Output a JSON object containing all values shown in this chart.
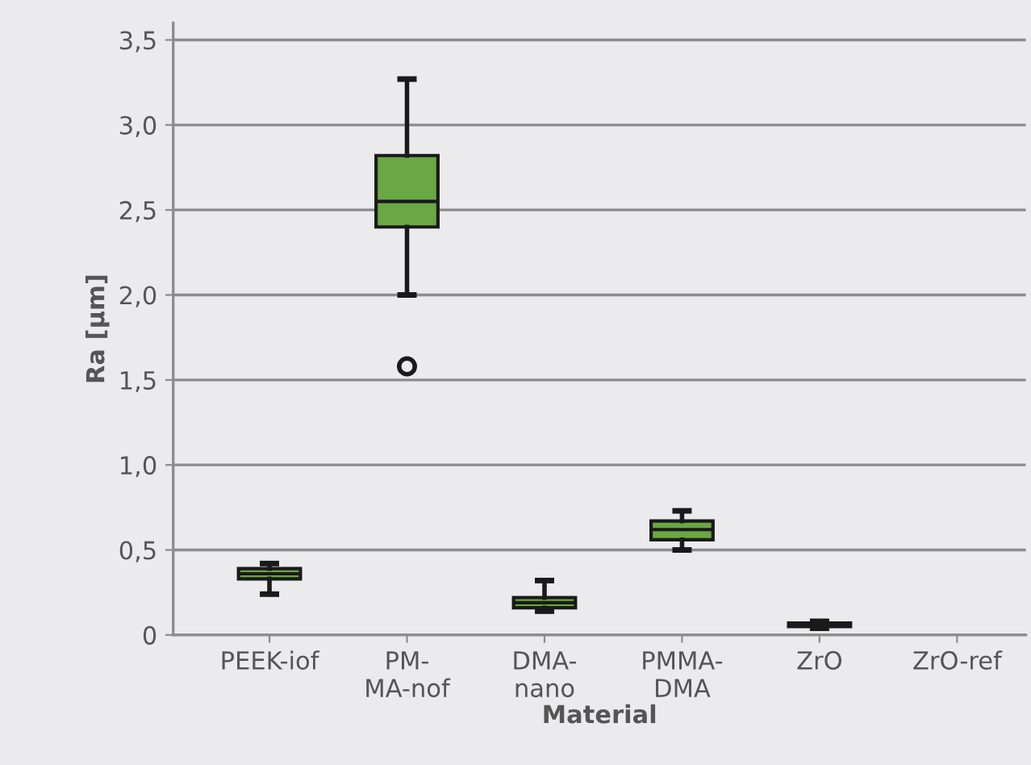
{
  "chart_data": {
    "type": "box",
    "xlabel": "Material",
    "ylabel": "Ra [µm]",
    "categories": [
      "PEEK-iof",
      "PM-\nMA-nof",
      "DMA-\nnano",
      "PMMA-\nDMA",
      "ZrO",
      "ZrO-ref"
    ],
    "color": "#6aa843",
    "boxes": [
      {
        "low": 0.24,
        "q1": 0.33,
        "median": 0.36,
        "q3": 0.39,
        "high": 0.42
      },
      {
        "low": 2.0,
        "q1": 2.4,
        "median": 2.55,
        "q3": 2.82,
        "high": 3.27,
        "outliers": [
          1.58
        ]
      },
      {
        "low": 0.14,
        "q1": 0.16,
        "median": 0.19,
        "q3": 0.22,
        "high": 0.32
      },
      {
        "low": 0.5,
        "q1": 0.56,
        "median": 0.62,
        "q3": 0.67,
        "high": 0.73
      },
      {
        "low": 0.04,
        "q1": 0.05,
        "median": 0.06,
        "q3": 0.07,
        "high": 0.08
      },
      null
    ],
    "ylim": [
      0,
      3.6
    ],
    "yticks": [
      0,
      {
        "value": 0.5,
        "label": "0,5"
      },
      {
        "value": 1.0,
        "label": "1,0"
      },
      {
        "value": 1.5,
        "label": "1,5"
      },
      {
        "value": 2.0,
        "label": "2,0"
      },
      {
        "value": 2.5,
        "label": "2,5"
      },
      {
        "value": 3.0,
        "label": "3,0"
      },
      {
        "value": 3.5,
        "label": "3,5"
      }
    ],
    "grid": "y",
    "legend": false
  }
}
